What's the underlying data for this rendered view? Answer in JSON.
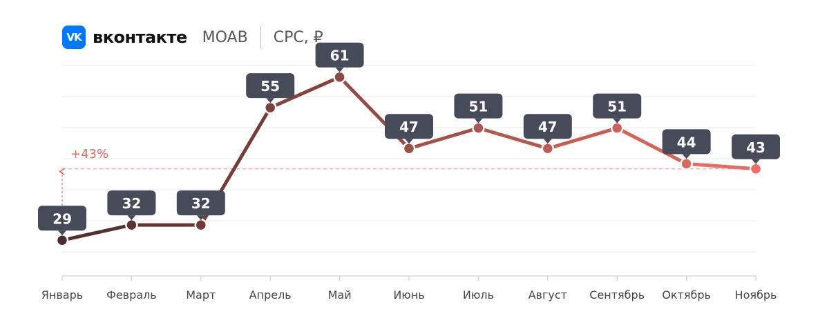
{
  "header": {
    "logo_text": "VK",
    "brand": "вконтакте",
    "format": "MOAB",
    "metric": "CPC, ₽"
  },
  "colors": {
    "start": "#4a2e2b",
    "end": "#ee6e63",
    "label_bg": "#474a58",
    "grid": "#ebebeb",
    "axis": "#cfcfcf",
    "accent": "#0077ff"
  },
  "chart_data": {
    "type": "line",
    "categories": [
      "Январь",
      "Февраль",
      "Март",
      "Апрель",
      "Май",
      "Июнь",
      "Июль",
      "Август",
      "Сентябрь",
      "Октябрь",
      "Ноябрь"
    ],
    "series": [
      {
        "values": [
          29,
          32,
          32,
          55,
          61,
          47,
          51,
          47,
          51,
          44,
          43
        ]
      }
    ],
    "ylim": [
      22,
      68
    ],
    "grid": true,
    "annotation": {
      "text": "+43%",
      "value": 43
    }
  }
}
